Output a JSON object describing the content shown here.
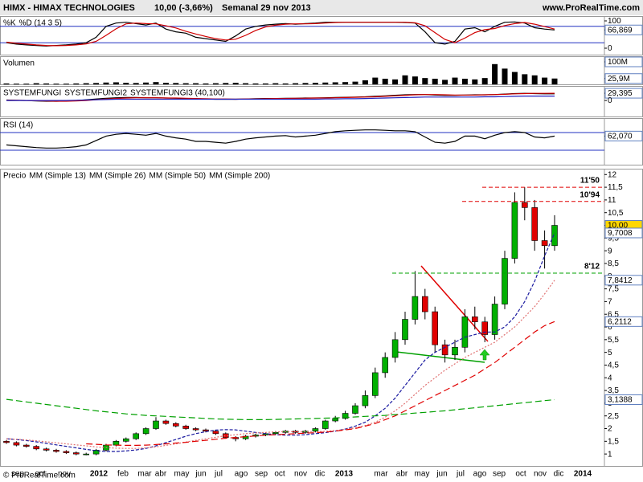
{
  "header": {
    "symbol": "HIMX - HIMAX TECHNOLOGIES",
    "quote": "10,00 (-3,66%)",
    "period": "Semanal 29 nov 2013",
    "site": "www.ProRealTime.com",
    "copyright": "© ProRealTime.com"
  },
  "chart_data": [
    {
      "type": "line",
      "title": "",
      "ylim": [
        -23.5,
        117.6
      ],
      "yticks": [
        100,
        {
          "value": 66.869,
          "label": "66,869"
        },
        0
      ],
      "ylines": [
        80,
        20
      ],
      "series": [
        {
          "name": "%K",
          "color": "#000000",
          "values": [
            20,
            15,
            12,
            10,
            8,
            10,
            12,
            15,
            20,
            40,
            80,
            92,
            95,
            90,
            85,
            92,
            70,
            60,
            55,
            40,
            35,
            30,
            25,
            45,
            70,
            80,
            85,
            88,
            90,
            88,
            90,
            92,
            95,
            95,
            95,
            95,
            95,
            95,
            95,
            95,
            94,
            92,
            60,
            20,
            15,
            25,
            70,
            75,
            60,
            80,
            95,
            96,
            92,
            75,
            70,
            66.869
          ]
        },
        {
          "name": "%D (14 3 5)",
          "color": "#d00000",
          "values": [
            22,
            18,
            15,
            12,
            10,
            9,
            10,
            12,
            16,
            25,
            47,
            71,
            89,
            92,
            90,
            89,
            82,
            74,
            62,
            52,
            43,
            35,
            30,
            33,
            47,
            65,
            78,
            84,
            88,
            89,
            89,
            90,
            92,
            94,
            95,
            95,
            95,
            95,
            95,
            95,
            95,
            93,
            82,
            57,
            32,
            20,
            37,
            57,
            68,
            72,
            83,
            90,
            94,
            88,
            79,
            70
          ]
        }
      ]
    },
    {
      "type": "bar",
      "title": "Volumen",
      "color": "#000000",
      "ylim": [
        0,
        125
      ],
      "yticks": [
        {
          "value": 100,
          "label": "100M"
        },
        {
          "value": 25.9,
          "label": "25,9M"
        }
      ],
      "values": [
        4,
        3,
        3,
        5,
        4,
        3,
        3,
        4,
        5,
        6,
        8,
        9,
        7,
        6,
        8,
        10,
        7,
        6,
        5,
        5,
        4,
        5,
        6,
        7,
        5,
        4,
        4,
        5,
        4,
        5,
        6,
        7,
        8,
        9,
        10,
        12,
        18,
        30,
        25,
        22,
        40,
        35,
        28,
        25,
        20,
        30,
        25,
        22,
        28,
        90,
        70,
        55,
        45,
        40,
        30,
        25.9
      ]
    },
    {
      "type": "line",
      "title": "",
      "ylim": [
        -65,
        59
      ],
      "yticks": [
        {
          "value": 29.395,
          "label": "29,395"
        },
        0
      ],
      "series": [
        {
          "name": "SYSTEMFUNGI",
          "color": "#000000",
          "values": [
            2,
            1,
            0,
            -2,
            -3,
            -3,
            -2,
            0,
            3,
            6,
            9,
            11,
            12,
            12,
            11,
            11,
            10,
            9,
            8,
            7,
            6,
            5,
            5,
            5,
            6,
            7,
            8,
            8,
            9,
            9,
            10,
            10,
            11,
            12,
            13,
            14,
            15,
            17,
            19,
            21,
            23,
            24,
            24,
            22,
            21,
            21,
            22,
            23,
            23,
            24,
            26,
            28,
            29,
            28,
            27,
            27
          ]
        },
        {
          "name": "SYSTEMFUNGI2",
          "color": "#d00000",
          "values": [
            1,
            1,
            0,
            -1,
            -2,
            -3,
            -3,
            -2,
            0,
            3,
            6,
            8,
            10,
            11,
            11,
            11,
            10,
            10,
            9,
            8,
            7,
            6,
            6,
            5,
            6,
            6,
            7,
            8,
            8,
            9,
            9,
            10,
            10,
            11,
            12,
            13,
            14,
            15,
            17,
            19,
            21,
            23,
            24,
            24,
            23,
            22,
            22,
            22,
            23,
            24,
            25,
            27,
            28,
            29,
            29,
            29.395
          ]
        },
        {
          "name": "SYSTEMFUNGI3 (40,100)",
          "color": "#2020c0",
          "values": [
            0,
            0,
            0,
            0,
            0,
            0,
            0,
            1,
            2,
            3,
            4,
            5,
            5,
            5,
            5,
            5,
            5,
            5,
            5,
            5,
            5,
            5,
            5,
            5,
            5,
            5,
            5,
            5,
            5,
            5,
            5,
            5,
            6,
            6,
            7,
            7,
            8,
            9,
            10,
            11,
            12,
            13,
            14,
            14,
            14,
            14,
            14,
            14,
            15,
            15,
            16,
            17,
            18,
            18,
            18,
            18
          ]
        }
      ]
    },
    {
      "type": "line",
      "title": "RSI (14)",
      "ylim": [
        -2.7,
        102.7
      ],
      "yticks": [
        {
          "value": 62.07,
          "label": "62,070"
        }
      ],
      "ylines": [
        70,
        30
      ],
      "series": [
        {
          "name": "",
          "color": "#000000",
          "values": [
            42,
            40,
            38,
            36,
            35,
            35,
            36,
            38,
            42,
            52,
            62,
            66,
            68,
            66,
            64,
            68,
            62,
            58,
            55,
            50,
            50,
            48,
            46,
            50,
            55,
            58,
            60,
            62,
            63,
            60,
            62,
            64,
            68,
            72,
            74,
            75,
            76,
            76,
            75,
            74,
            74,
            72,
            60,
            48,
            46,
            50,
            62,
            62,
            56,
            64,
            70,
            72,
            70,
            60,
            58,
            62.07
          ]
        }
      ]
    },
    {
      "type": "candlestick",
      "title": "Precio",
      "ylim": [
        0.53,
        12.23
      ],
      "up_color": "#00b000",
      "down_color": "#e00000",
      "yticks": [
        1,
        {
          "value": 1.5,
          "label": "1,5"
        },
        2,
        {
          "value": 2.5,
          "label": "2,5"
        },
        3,
        {
          "value": 3.5,
          "label": "3,5"
        },
        4,
        {
          "value": 4.5,
          "label": "4,5"
        },
        5,
        {
          "value": 5.5,
          "label": "5,5"
        },
        6,
        {
          "value": 6.5,
          "label": "6,5"
        },
        7,
        {
          "value": 7.5,
          "label": "7,5"
        },
        8,
        {
          "value": 8.5,
          "label": "8,5"
        },
        9,
        {
          "value": 9.5,
          "label": "9,5"
        },
        10,
        {
          "value": 10.5,
          "label": "10,5"
        },
        11,
        {
          "value": 11.5,
          "label": "11,5"
        },
        12
      ],
      "x_labels": [
        "sep",
        "oct",
        "nov",
        "2012",
        "feb",
        "mar",
        "abr",
        "may",
        "jun",
        "jul",
        "ago",
        "sep",
        "oct",
        "nov",
        "dic",
        "2013",
        "mar",
        "abr",
        "may",
        "jun",
        "jul",
        "ago",
        "sep",
        "oct",
        "nov",
        "dic",
        "2014"
      ],
      "open": [
        1.5,
        1.45,
        1.35,
        1.3,
        1.2,
        1.15,
        1.1,
        1.05,
        1.0,
        1.0,
        1.15,
        1.35,
        1.5,
        1.6,
        1.8,
        2.0,
        2.3,
        2.2,
        2.1,
        2.0,
        1.95,
        1.9,
        1.8,
        1.65,
        1.6,
        1.7,
        1.75,
        1.8,
        1.85,
        1.9,
        1.85,
        1.9,
        2.0,
        2.3,
        2.4,
        2.6,
        2.9,
        3.3,
        4.2,
        4.8,
        5.5,
        6.3,
        7.2,
        6.6,
        5.3,
        4.9,
        5.2,
        6.4,
        6.2,
        5.7,
        6.9,
        8.7,
        10.9,
        10.7,
        9.4,
        9.2
      ],
      "high": [
        1.55,
        1.5,
        1.4,
        1.35,
        1.25,
        1.2,
        1.15,
        1.1,
        1.05,
        1.2,
        1.4,
        1.55,
        1.65,
        1.85,
        2.05,
        2.45,
        2.35,
        2.25,
        2.15,
        2.05,
        2.0,
        1.95,
        1.85,
        1.7,
        1.75,
        1.8,
        1.85,
        1.9,
        1.95,
        1.95,
        1.95,
        2.05,
        2.35,
        2.5,
        2.7,
        3.0,
        3.5,
        4.4,
        5.0,
        5.8,
        6.6,
        8.2,
        7.5,
        6.8,
        5.5,
        5.5,
        6.7,
        6.8,
        6.4,
        7.2,
        9.0,
        11.3,
        11.5,
        11.0,
        9.8,
        10.4
      ],
      "low": [
        1.4,
        1.3,
        1.25,
        1.15,
        1.1,
        1.05,
        1.0,
        0.95,
        0.95,
        0.95,
        1.1,
        1.3,
        1.45,
        1.55,
        1.75,
        1.95,
        2.15,
        2.05,
        1.95,
        1.9,
        1.85,
        1.75,
        1.6,
        1.5,
        1.55,
        1.65,
        1.7,
        1.75,
        1.8,
        1.8,
        1.8,
        1.85,
        1.95,
        2.25,
        2.35,
        2.55,
        2.8,
        3.2,
        4.0,
        4.6,
        5.3,
        6.1,
        6.3,
        5.0,
        4.6,
        4.7,
        5.0,
        5.9,
        5.4,
        5.5,
        6.7,
        8.5,
        10.2,
        9.0,
        8.3,
        9.0
      ],
      "close": [
        1.45,
        1.35,
        1.3,
        1.2,
        1.15,
        1.1,
        1.05,
        1.0,
        1.0,
        1.15,
        1.35,
        1.5,
        1.6,
        1.8,
        2.0,
        2.3,
        2.2,
        2.1,
        2.0,
        1.95,
        1.9,
        1.8,
        1.65,
        1.6,
        1.7,
        1.75,
        1.8,
        1.85,
        1.9,
        1.85,
        1.9,
        2.0,
        2.3,
        2.4,
        2.6,
        2.9,
        3.3,
        4.2,
        4.8,
        5.5,
        6.3,
        7.2,
        6.6,
        5.3,
        4.9,
        5.2,
        6.4,
        6.2,
        5.7,
        6.9,
        8.7,
        10.9,
        10.7,
        9.4,
        9.2,
        10.0
      ],
      "series": [
        {
          "name": "MM (Simple 13)",
          "color": "#1a1aa0",
          "dash": "4,2",
          "values": [
            1.6,
            1.57,
            1.53,
            1.48,
            1.42,
            1.36,
            1.3,
            1.24,
            1.18,
            1.13,
            1.1,
            1.1,
            1.12,
            1.16,
            1.22,
            1.32,
            1.45,
            1.57,
            1.7,
            1.8,
            1.88,
            1.94,
            1.96,
            1.95,
            1.9,
            1.85,
            1.8,
            1.76,
            1.74,
            1.74,
            1.76,
            1.8,
            1.84,
            1.9,
            1.98,
            2.1,
            2.25,
            2.5,
            2.8,
            3.2,
            3.7,
            4.2,
            4.7,
            5.0,
            5.2,
            5.4,
            5.6,
            5.7,
            5.8,
            5.8,
            6.0,
            6.4,
            7.0,
            7.8,
            8.8,
            9.7008
          ]
        },
        {
          "name": "MM (Simple 26)",
          "color": "#e07070",
          "dash": "2,2",
          "values": [
            1.6,
            1.58,
            1.55,
            1.52,
            1.48,
            1.44,
            1.4,
            1.36,
            1.32,
            1.28,
            1.25,
            1.23,
            1.22,
            1.22,
            1.24,
            1.28,
            1.34,
            1.4,
            1.47,
            1.54,
            1.6,
            1.66,
            1.72,
            1.76,
            1.8,
            1.83,
            1.85,
            1.87,
            1.88,
            1.88,
            1.88,
            1.88,
            1.89,
            1.92,
            1.97,
            2.03,
            2.12,
            2.25,
            2.45,
            2.7,
            3.0,
            3.35,
            3.7,
            4.0,
            4.3,
            4.55,
            4.8,
            5.0,
            5.2,
            5.4,
            5.7,
            6.0,
            6.4,
            6.8,
            7.3,
            7.8412
          ]
        },
        {
          "name": "MM (Simple 50)",
          "color": "#e00000",
          "dash": "8,4",
          "values": [
            null,
            null,
            null,
            null,
            null,
            null,
            null,
            null,
            1.4,
            1.38,
            1.36,
            1.35,
            1.34,
            1.34,
            1.35,
            1.37,
            1.4,
            1.43,
            1.46,
            1.5,
            1.54,
            1.58,
            1.62,
            1.65,
            1.68,
            1.71,
            1.74,
            1.76,
            1.78,
            1.8,
            1.82,
            1.84,
            1.86,
            1.9,
            1.95,
            2.0,
            2.1,
            2.2,
            2.35,
            2.5,
            2.7,
            2.9,
            3.1,
            3.3,
            3.5,
            3.7,
            3.9,
            4.1,
            4.35,
            4.6,
            4.9,
            5.2,
            5.5,
            5.8,
            6.05,
            6.2112
          ]
        },
        {
          "name": "MM (Simple 200)",
          "color": "#00a000",
          "dash": "8,4",
          "values": [
            3.15,
            3.1,
            3.05,
            3.0,
            2.95,
            2.9,
            2.85,
            2.8,
            2.75,
            2.7,
            2.66,
            2.62,
            2.58,
            2.55,
            2.52,
            2.5,
            2.48,
            2.46,
            2.44,
            2.42,
            2.4,
            2.38,
            2.37,
            2.36,
            2.35,
            2.35,
            2.35,
            2.36,
            2.37,
            2.38,
            2.39,
            2.4,
            2.41,
            2.42,
            2.44,
            2.46,
            2.48,
            2.5,
            2.52,
            2.55,
            2.58,
            2.61,
            2.64,
            2.67,
            2.7,
            2.74,
            2.78,
            2.82,
            2.86,
            2.9,
            2.94,
            2.98,
            3.02,
            3.06,
            3.1,
            3.1388
          ]
        }
      ],
      "levels": [
        {
          "value": 11.5,
          "label": "11'50",
          "color": "#e00000"
        },
        {
          "value": 10.94,
          "label": "10'94",
          "color": "#e00000"
        },
        {
          "value": 8.12,
          "label": "8'12",
          "color": "#00a000"
        }
      ],
      "last_labels": [
        {
          "value": 10,
          "label": "10,00",
          "color": "#000000",
          "bg": "#ffd700"
        },
        {
          "value": 9.7008,
          "label": "9,7008",
          "color": "#000000",
          "bg": "#ffffff"
        },
        {
          "value": 7.8412,
          "label": "7,8412",
          "color": "#e00000",
          "bg": "#ffffff"
        },
        {
          "value": 6.2112,
          "label": "6,2112",
          "color": "#e00000",
          "bg": "#ffffff"
        },
        {
          "value": 3.1388,
          "label": "3,1388",
          "color": "#00a000",
          "bg": "#ffffff"
        }
      ]
    }
  ]
}
